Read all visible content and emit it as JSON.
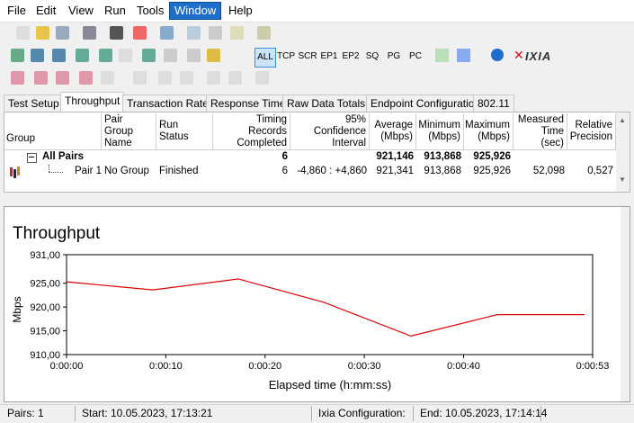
{
  "menu": [
    "File",
    "Edit",
    "View",
    "Run",
    "Tools",
    "Window",
    "Help"
  ],
  "toolbar": {
    "buttons": [
      "ALL",
      "TCP",
      "SCR",
      "EP1",
      "EP2",
      "SQ",
      "PG",
      "PC"
    ],
    "logo": "IXIA"
  },
  "tabs": [
    "Test Setup",
    "Throughput",
    "Transaction Rate",
    "Response Time",
    "Raw Data Totals",
    "Endpoint Configuration",
    "802.11"
  ],
  "table": {
    "headers": {
      "group": "Group",
      "pair_group_name": "Pair Group\nName",
      "run_status": "Run Status",
      "records": "Timing Records\nCompleted",
      "confidence": "95% Confidence\nInterval",
      "average": "Average\n(Mbps)",
      "minimum": "Minimum\n(Mbps)",
      "maximum": "Maximum\n(Mbps)",
      "measured_time": "Measured\nTime (sec)",
      "relative_precision": "Relative\nPrecision"
    },
    "rows": [
      {
        "group": "All Pairs",
        "records": "6",
        "average": "921,146",
        "minimum": "913,868",
        "maximum": "925,926"
      },
      {
        "group": "Pair 1",
        "pair_group_name": "No Group",
        "run_status": "Finished",
        "records": "6",
        "confidence": "-4,860 : +4,860",
        "average": "921,341",
        "minimum": "913,868",
        "maximum": "925,926",
        "measured_time": "52,098",
        "relative_precision": "0,527"
      }
    ]
  },
  "chart_data": {
    "type": "line",
    "title": "Throughput",
    "x_label": "Elapsed time (h:mm:ss)",
    "y_label": "Mbps",
    "x": [
      0,
      8.7,
      17.3,
      25.9,
      34.7,
      43.4,
      52.2
    ],
    "series": [
      {
        "name": "Pair 1",
        "color": "#e00000",
        "values": [
          925.3,
          923.6,
          925.9,
          921.0,
          913.9,
          918.4,
          918.4
        ]
      }
    ],
    "xlim": [
      0,
      53
    ],
    "xticks": [
      {
        "value": 0,
        "label": "0:00:00"
      },
      {
        "value": 10,
        "label": "0:00:10"
      },
      {
        "value": 20,
        "label": "0:00:20"
      },
      {
        "value": 30,
        "label": "0:00:30"
      },
      {
        "value": 40,
        "label": "0:00:40"
      },
      {
        "value": 53,
        "label": "0:00:53"
      }
    ],
    "ylim": [
      910,
      931
    ],
    "yticks": [
      {
        "value": 910,
        "label": "910,00"
      },
      {
        "value": 915,
        "label": "915,00"
      },
      {
        "value": 920,
        "label": "920,00"
      },
      {
        "value": 925,
        "label": "925,00"
      },
      {
        "value": 931,
        "label": "931,00"
      }
    ]
  },
  "status_bar": [
    "Pairs: 1",
    "Start: 10.05.2023, 17:13:21",
    "Ixia Configuration:",
    "End: 10.05.2023, 17:14:14"
  ]
}
